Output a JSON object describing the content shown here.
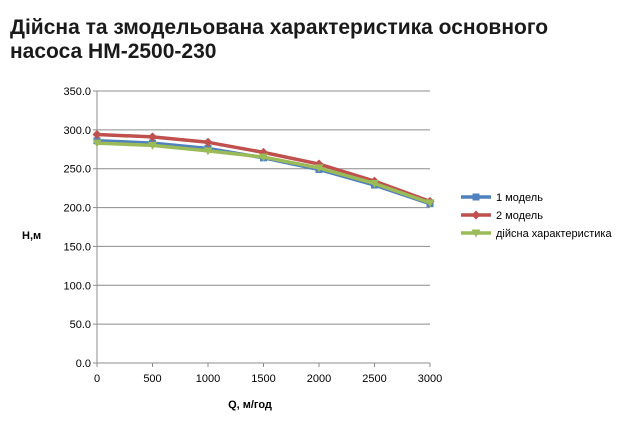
{
  "chart_data": {
    "type": "line",
    "title": "Дійсна та змодельована характеристика основного насоса НМ-2500-230",
    "xlabel": "Q, м/год",
    "ylabel": "Н,м",
    "xlim": [
      0,
      3000
    ],
    "ylim": [
      0,
      350
    ],
    "x_ticks": [
      "0",
      "500",
      "1000",
      "1500",
      "2000",
      "2500",
      "3000"
    ],
    "y_ticks": [
      "0.0",
      "50.0",
      "100.0",
      "150.0",
      "200.0",
      "250.0",
      "300.0",
      "350.0"
    ],
    "grid": "horizontal",
    "legend_position": "right",
    "series": [
      {
        "name": "1 модель",
        "color": "#4F81BD",
        "marker": "square",
        "x": [
          0,
          500,
          1000,
          1500,
          2000,
          2500,
          3000
        ],
        "values": [
          286,
          283,
          276,
          264,
          249,
          229,
          205
        ]
      },
      {
        "name": "2 модель",
        "color": "#C0504D",
        "marker": "diamond",
        "x": [
          0,
          500,
          1000,
          1500,
          2000,
          2500,
          3000
        ],
        "values": [
          294,
          291,
          284,
          271,
          256,
          234,
          208
        ]
      },
      {
        "name": "дійсна характеристика",
        "color": "#9BBB59",
        "marker": "triangle-down",
        "x": [
          0,
          500,
          1000,
          1500,
          2000,
          2500,
          3000
        ],
        "values": [
          283,
          280,
          273,
          265,
          251,
          231,
          206
        ]
      }
    ]
  }
}
